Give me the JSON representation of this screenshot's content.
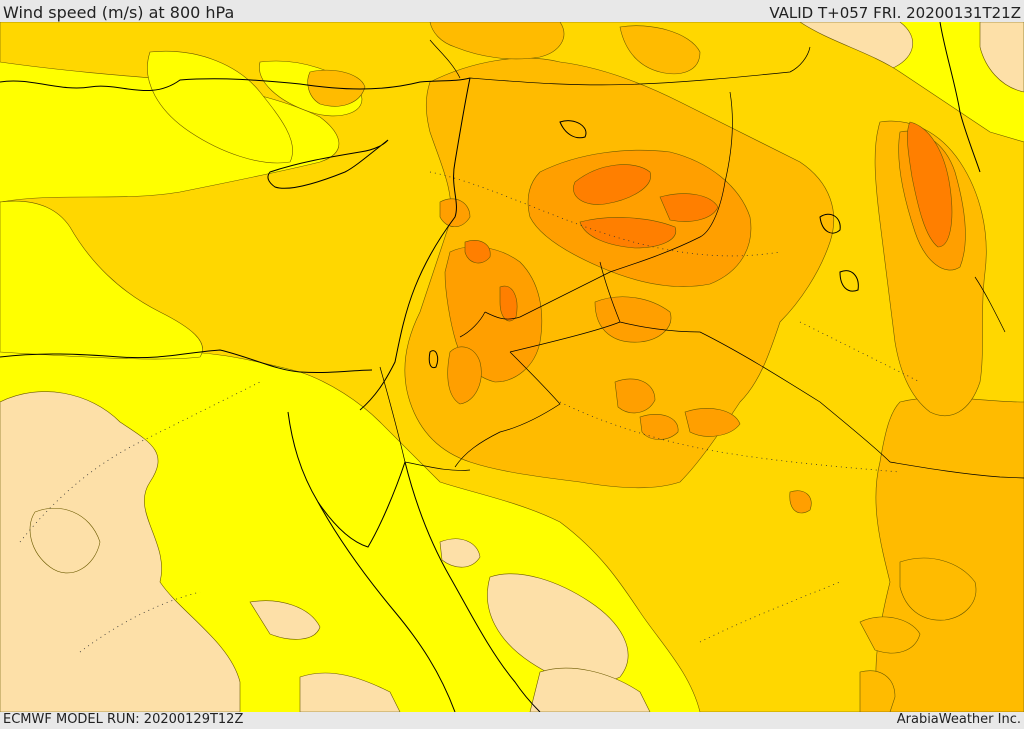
{
  "header": {
    "title": "Wind speed (m/s) at 800 hPa",
    "valid": "VALID T+057 FRI. 20200131T21Z"
  },
  "footer": {
    "model_run": "ECMWF MODEL RUN: 20200129T12Z",
    "brand": "ArabiaWeather Inc."
  },
  "colors": {
    "calm": "#fde0a8",
    "light": "#ffff00",
    "moderate": "#ffd700",
    "fresh": "#ffbb00",
    "strong": "#ff9f00",
    "very_strong": "#ff7f00",
    "land_border": "#000000",
    "contour": "#6b5a00",
    "background": "#e8e8e8"
  }
}
